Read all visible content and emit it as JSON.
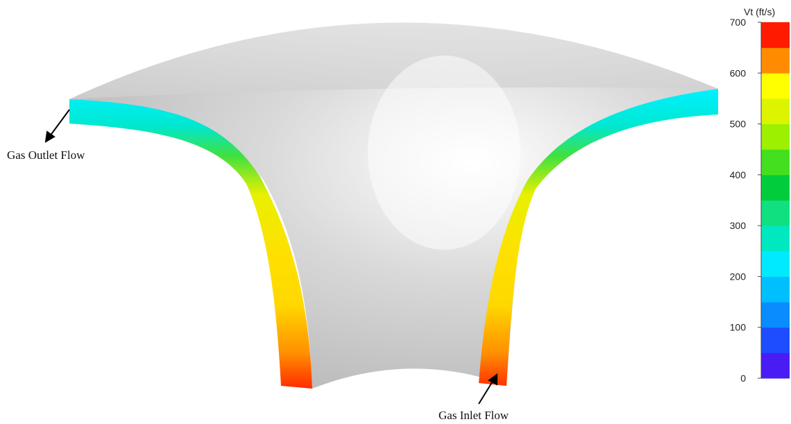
{
  "annotations": [
    "Gas Outlet Flow",
    "Gas Inlet Flow"
  ],
  "colorbar": {
    "title": "Vt (ft/s)",
    "lim": [
      0,
      700
    ],
    "ticks": [
      0,
      100,
      200,
      300,
      400,
      500,
      600,
      700
    ],
    "colors": [
      "#4a1cf5",
      "#1e4cff",
      "#0a8cff",
      "#00bfff",
      "#00eaff",
      "#00e8c0",
      "#10e080",
      "#00cc3c",
      "#44e020",
      "#9cf000",
      "#dcf400",
      "#ffff00",
      "#ff8c00",
      "#ff1a00"
    ]
  }
}
